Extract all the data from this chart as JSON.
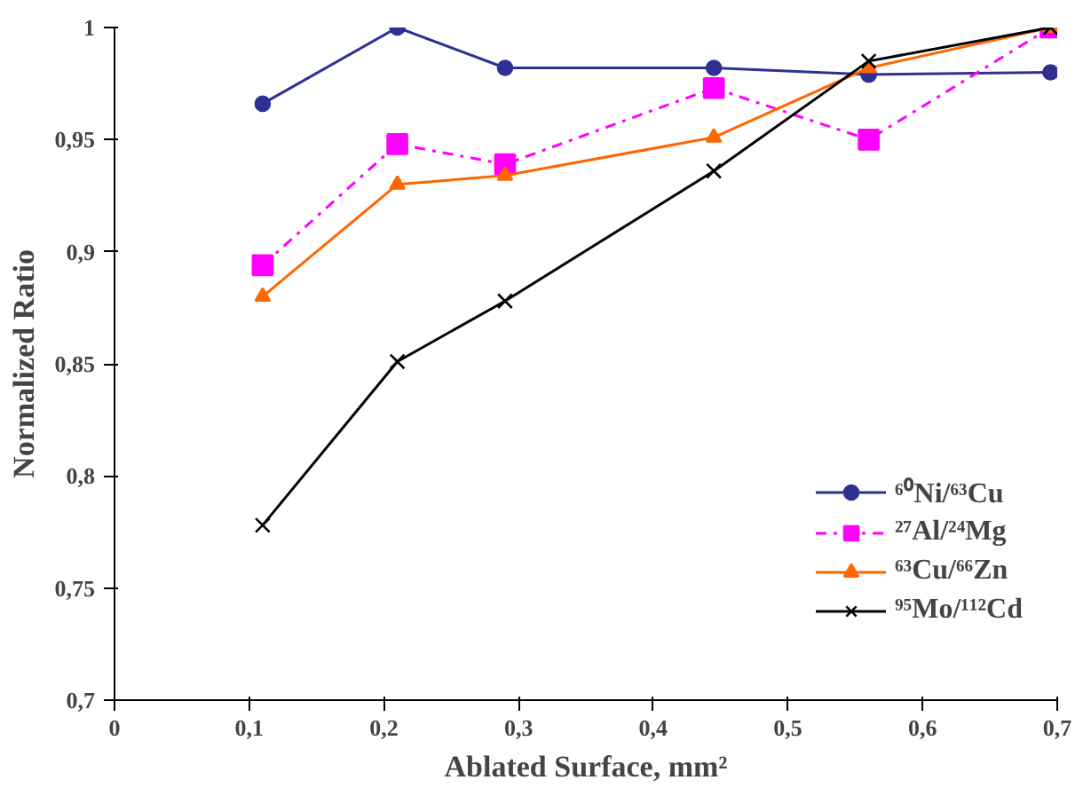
{
  "chart_data": {
    "type": "line",
    "xlabel": "Ablated Surface, mm²",
    "ylabel": "Normalized Ratio",
    "x": [
      0.11,
      0.21,
      0.29,
      0.445,
      0.56,
      0.695
    ],
    "series": [
      {
        "name": "⁶⁰Ni/⁶³Cu",
        "color": "#2e3192",
        "marker": "circle",
        "line_style": "solid",
        "values": [
          0.966,
          1.0,
          0.982,
          0.982,
          0.979,
          0.98
        ]
      },
      {
        "name": "²⁷Al/²⁴Mg",
        "color": "#ff00ff",
        "marker": "square",
        "line_style": "dashed",
        "values": [
          0.894,
          0.948,
          0.939,
          0.973,
          0.95,
          1.0
        ]
      },
      {
        "name": "⁶³Cu/⁶⁶Zn",
        "color": "#ff6600",
        "marker": "triangle",
        "line_style": "solid",
        "values": [
          0.88,
          0.93,
          0.934,
          0.951,
          0.982,
          1.0
        ]
      },
      {
        "name": "⁹⁵Mo/¹¹²Cd",
        "color": "#000000",
        "marker": "cross",
        "line_style": "solid",
        "values": [
          0.778,
          0.851,
          0.878,
          0.936,
          0.985,
          1.0
        ]
      }
    ],
    "xlim": [
      0,
      0.7
    ],
    "ylim": [
      0.7,
      1.0
    ],
    "xticks": [
      0,
      {
        "value": 0.1,
        "label": "0,1"
      },
      {
        "value": 0.2,
        "label": "0,2"
      },
      {
        "value": 0.3,
        "label": "0,3"
      },
      {
        "value": 0.4,
        "label": "0,4"
      },
      {
        "value": 0.5,
        "label": "0,5"
      },
      {
        "value": 0.6,
        "label": "0,6"
      },
      {
        "value": 0.7,
        "label": "0,7"
      }
    ],
    "yticks": [
      {
        "value": 0.7,
        "label": "0,7"
      },
      {
        "value": 0.75,
        "label": "0,75"
      },
      {
        "value": 0.8,
        "label": "0,8"
      },
      {
        "value": 0.85,
        "label": "0,85"
      },
      {
        "value": 0.9,
        "label": "0,9"
      },
      {
        "value": 0.95,
        "label": "0,95"
      },
      1
    ],
    "grid": false,
    "legend": "right"
  }
}
